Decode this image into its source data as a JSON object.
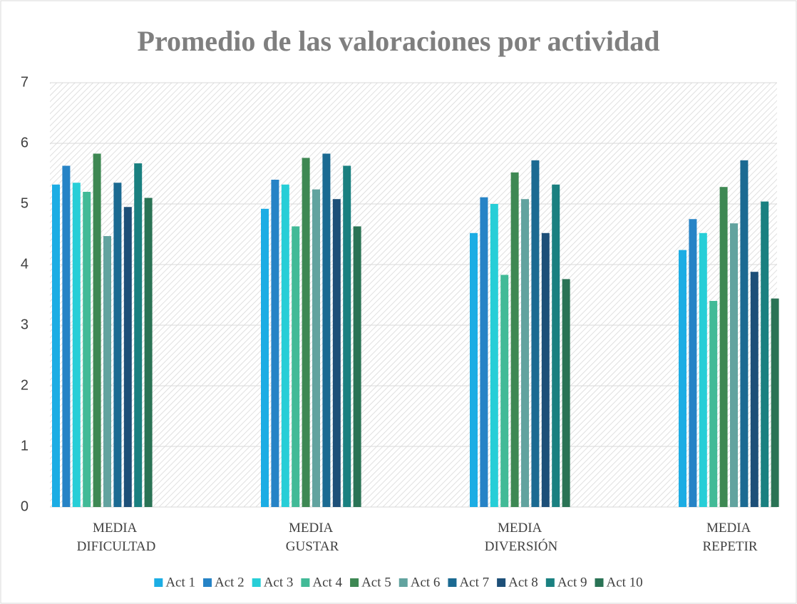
{
  "chart_data": {
    "type": "bar",
    "title": "Promedio de las valoraciones por actividad",
    "categories": [
      "MEDIA DIFICULTAD",
      "MEDIA GUSTAR",
      "MEDIA DIVERSIÓN",
      "MEDIA REPETIR"
    ],
    "series": [
      {
        "name": "Act 1",
        "color": "#1cade4",
        "values": [
          5.32,
          4.92,
          4.52,
          4.24
        ]
      },
      {
        "name": "Act 2",
        "color": "#2683c6",
        "values": [
          5.63,
          5.4,
          5.11,
          4.75
        ]
      },
      {
        "name": "Act 3",
        "color": "#27ced7",
        "values": [
          5.35,
          5.32,
          5.0,
          4.52
        ]
      },
      {
        "name": "Act 4",
        "color": "#42ba97",
        "values": [
          5.2,
          4.63,
          3.83,
          3.4
        ]
      },
      {
        "name": "Act 5",
        "color": "#3e8853",
        "values": [
          5.83,
          5.76,
          5.52,
          5.28
        ]
      },
      {
        "name": "Act 6",
        "color": "#62a39f",
        "values": [
          4.47,
          5.24,
          5.08,
          4.68
        ]
      },
      {
        "name": "Act 7",
        "color": "#1b6a92",
        "values": [
          5.35,
          5.83,
          5.72,
          5.72
        ]
      },
      {
        "name": "Act 8",
        "color": "#1d4f78",
        "values": [
          4.95,
          5.08,
          4.52,
          3.88
        ]
      },
      {
        "name": "Act 9",
        "color": "#1a8080",
        "values": [
          5.67,
          5.63,
          5.32,
          5.04
        ]
      },
      {
        "name": "Act 10",
        "color": "#2a7355",
        "values": [
          5.1,
          4.63,
          3.76,
          3.44
        ]
      }
    ],
    "ylim": [
      0,
      7
    ],
    "yticks": [
      0,
      1,
      2,
      3,
      4,
      5,
      6,
      7
    ],
    "grid": true,
    "legend": "bottom"
  }
}
